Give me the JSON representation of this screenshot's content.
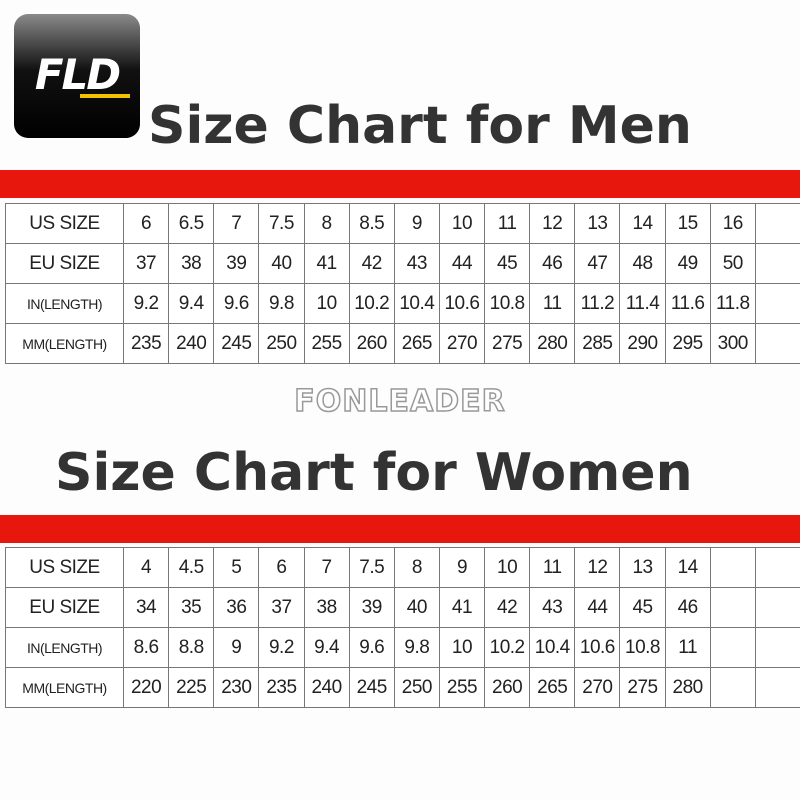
{
  "logo": "FLD",
  "watermark": "FONLEADER",
  "men": {
    "title": "Size Chart for Men",
    "rows": [
      [
        "US SIZE",
        "6",
        "6.5",
        "7",
        "7.5",
        "8",
        "8.5",
        "9",
        "10",
        "11",
        "12",
        "13",
        "14",
        "15",
        "16"
      ],
      [
        "EU SIZE",
        "37",
        "38",
        "39",
        "40",
        "41",
        "42",
        "43",
        "44",
        "45",
        "46",
        "47",
        "48",
        "49",
        "50"
      ],
      [
        "IN(LENGTH)",
        "9.2",
        "9.4",
        "9.6",
        "9.8",
        "10",
        "10.2",
        "10.4",
        "10.6",
        "10.8",
        "11",
        "11.2",
        "11.4",
        "11.6",
        "11.8"
      ],
      [
        "MM(LENGTH)",
        "235",
        "240",
        "245",
        "250",
        "255",
        "260",
        "265",
        "270",
        "275",
        "280",
        "285",
        "290",
        "295",
        "300"
      ]
    ]
  },
  "women": {
    "title": "Size Chart for Women",
    "rows": [
      [
        "US SIZE",
        "4",
        "4.5",
        "5",
        "6",
        "7",
        "7.5",
        "8",
        "9",
        "10",
        "11",
        "12",
        "13",
        "14"
      ],
      [
        "EU SIZE",
        "34",
        "35",
        "36",
        "37",
        "38",
        "39",
        "40",
        "41",
        "42",
        "43",
        "44",
        "45",
        "46"
      ],
      [
        "IN(LENGTH)",
        "8.6",
        "8.8",
        "9",
        "9.2",
        "9.4",
        "9.6",
        "9.8",
        "10",
        "10.2",
        "10.4",
        "10.6",
        "10.8",
        "11"
      ],
      [
        "MM(LENGTH)",
        "220",
        "225",
        "230",
        "235",
        "240",
        "245",
        "250",
        "255",
        "260",
        "265",
        "270",
        "275",
        "280"
      ]
    ]
  }
}
